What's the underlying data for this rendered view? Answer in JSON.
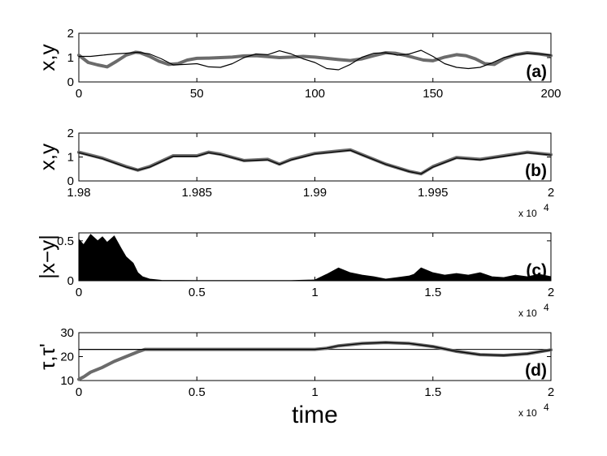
{
  "chart_data": [
    {
      "type": "line",
      "panel_label": "(a)",
      "ylabel": "x,y",
      "xlim": [
        0,
        200
      ],
      "ylim": [
        0,
        2
      ],
      "xticks": [
        "0",
        "50",
        "100",
        "150",
        "200"
      ],
      "yticks": [
        "0",
        "1",
        "2"
      ],
      "series": [
        {
          "style": "thick-gray",
          "color": "#6b6b6b",
          "x": [
            0,
            4,
            8,
            12,
            16,
            20,
            24,
            26,
            30,
            34,
            38,
            42,
            46,
            50,
            55,
            60,
            65,
            70,
            75,
            80,
            85,
            90,
            95,
            100,
            105,
            110,
            115,
            120,
            125,
            130,
            134,
            138,
            142,
            146,
            150,
            155,
            160,
            164,
            168,
            172,
            176,
            180,
            185,
            190,
            195,
            200
          ],
          "values": [
            1.1,
            0.8,
            0.7,
            0.62,
            0.85,
            1.1,
            1.22,
            1.2,
            1.05,
            0.85,
            0.72,
            0.75,
            0.9,
            0.97,
            0.98,
            1.0,
            1.02,
            1.07,
            1.08,
            1.04,
            1.0,
            1.02,
            1.05,
            1.02,
            0.97,
            0.92,
            0.88,
            0.95,
            1.08,
            1.2,
            1.18,
            1.1,
            1.0,
            0.9,
            0.87,
            1.02,
            1.12,
            1.08,
            0.95,
            0.75,
            0.72,
            0.95,
            1.12,
            1.2,
            1.15,
            1.08
          ]
        },
        {
          "style": "thin-black",
          "color": "#000000",
          "x": [
            0,
            5,
            10,
            15,
            20,
            25,
            30,
            35,
            40,
            45,
            50,
            55,
            60,
            65,
            70,
            75,
            80,
            85,
            90,
            95,
            100,
            105,
            110,
            115,
            120,
            125,
            130,
            135,
            140,
            145,
            150,
            155,
            160,
            165,
            170,
            175,
            180,
            185,
            190,
            195,
            200
          ],
          "values": [
            1.05,
            1.05,
            1.1,
            1.15,
            1.18,
            1.22,
            1.15,
            0.95,
            0.7,
            0.72,
            0.75,
            0.62,
            0.6,
            0.75,
            1.0,
            1.15,
            1.12,
            1.28,
            1.15,
            0.95,
            0.8,
            0.55,
            0.5,
            0.72,
            1.02,
            1.18,
            1.2,
            1.1,
            1.15,
            1.3,
            1.05,
            0.75,
            0.6,
            0.55,
            0.6,
            0.78,
            1.0,
            1.12,
            1.18,
            1.15,
            1.1
          ]
        }
      ]
    },
    {
      "type": "line",
      "panel_label": "(b)",
      "ylabel": "x,y",
      "xlim": [
        1.98,
        2.0
      ],
      "ylim": [
        0,
        2
      ],
      "xticks": [
        "1.98",
        "1.985",
        "1.99",
        "1.995",
        "2"
      ],
      "yticks": [
        "0",
        "1",
        "2"
      ],
      "x_multiplier": "x 10",
      "x_multiplier_exp": "4",
      "series": [
        {
          "style": "thick-gray",
          "color": "#6b6b6b",
          "x": [
            1.98,
            1.981,
            1.982,
            1.9825,
            1.983,
            1.984,
            1.985,
            1.9855,
            1.986,
            1.987,
            1.988,
            1.9885,
            1.989,
            1.99,
            1.991,
            1.9915,
            1.992,
            1.993,
            1.994,
            1.9945,
            1.995,
            1.996,
            1.997,
            1.998,
            1.999,
            2.0
          ],
          "values": [
            1.2,
            0.95,
            0.6,
            0.45,
            0.6,
            1.05,
            1.05,
            1.2,
            1.12,
            0.85,
            0.9,
            0.7,
            0.9,
            1.15,
            1.25,
            1.3,
            1.1,
            0.7,
            0.4,
            0.3,
            0.6,
            0.98,
            0.9,
            1.05,
            1.2,
            1.1
          ]
        },
        {
          "style": "thin-black",
          "color": "#000000",
          "x": [
            1.98,
            1.981,
            1.982,
            1.9825,
            1.983,
            1.984,
            1.985,
            1.9855,
            1.986,
            1.987,
            1.988,
            1.9885,
            1.989,
            1.99,
            1.991,
            1.9915,
            1.992,
            1.993,
            1.994,
            1.9945,
            1.995,
            1.996,
            1.997,
            1.998,
            1.999,
            2.0
          ],
          "values": [
            1.18,
            0.93,
            0.58,
            0.45,
            0.58,
            1.03,
            1.03,
            1.18,
            1.1,
            0.84,
            0.88,
            0.69,
            0.88,
            1.13,
            1.23,
            1.28,
            1.08,
            0.69,
            0.39,
            0.3,
            0.58,
            0.96,
            0.88,
            1.03,
            1.18,
            1.08
          ]
        }
      ]
    },
    {
      "type": "area",
      "panel_label": "(c)",
      "ylabel": "|x−y|",
      "xlim": [
        0,
        2
      ],
      "ylim": [
        0,
        0.6
      ],
      "xticks": [
        "0",
        "0.5",
        "1",
        "1.5",
        "2"
      ],
      "yticks": [
        "0",
        "0.5"
      ],
      "x_multiplier": "x 10",
      "x_multiplier_exp": "4",
      "series": [
        {
          "style": "black-fill",
          "color": "#000000",
          "x": [
            0,
            0.02,
            0.05,
            0.08,
            0.1,
            0.12,
            0.15,
            0.18,
            0.2,
            0.23,
            0.25,
            0.27,
            0.3,
            0.35,
            0.5,
            0.9,
            1.0,
            1.05,
            1.1,
            1.15,
            1.2,
            1.25,
            1.3,
            1.35,
            1.4,
            1.42,
            1.45,
            1.5,
            1.55,
            1.6,
            1.65,
            1.7,
            1.75,
            1.8,
            1.85,
            1.9,
            1.95,
            2.0
          ],
          "values": [
            0.52,
            0.45,
            0.58,
            0.5,
            0.55,
            0.48,
            0.56,
            0.4,
            0.3,
            0.22,
            0.1,
            0.05,
            0.02,
            0.005,
            0.002,
            0.002,
            0.01,
            0.08,
            0.16,
            0.1,
            0.07,
            0.05,
            0.02,
            0.04,
            0.06,
            0.08,
            0.16,
            0.1,
            0.07,
            0.09,
            0.07,
            0.1,
            0.05,
            0.04,
            0.07,
            0.05,
            0.08,
            0.05
          ]
        }
      ]
    },
    {
      "type": "line",
      "panel_label": "(d)",
      "ylabel": "τ,τ'",
      "xlabel": "time",
      "xlim": [
        0,
        2
      ],
      "ylim": [
        10,
        30
      ],
      "xticks": [
        "0",
        "0.5",
        "1",
        "1.5",
        "2"
      ],
      "yticks": [
        "10",
        "20",
        "30"
      ],
      "x_multiplier": "x 10",
      "x_multiplier_exp": "4",
      "reference_line": 23,
      "series": [
        {
          "style": "thick-gray",
          "color": "#6b6b6b",
          "x": [
            0,
            0.02,
            0.05,
            0.1,
            0.15,
            0.2,
            0.25,
            0.28,
            0.3,
            0.5,
            1.0,
            1.05,
            1.1,
            1.2,
            1.3,
            1.4,
            1.5,
            1.6,
            1.7,
            1.8,
            1.9,
            2.0
          ],
          "values": [
            10.5,
            11.5,
            13.5,
            15.5,
            18,
            20,
            22,
            23,
            23,
            23,
            23,
            23.5,
            24.5,
            25.5,
            25.9,
            25.5,
            24.2,
            22.2,
            20.8,
            20.5,
            21.2,
            22.8
          ]
        },
        {
          "style": "thin-black",
          "color": "#000000",
          "x": [
            0,
            0.3,
            0.5,
            1.0,
            1.05,
            1.1,
            1.2,
            1.3,
            1.4,
            1.5,
            1.6,
            1.7,
            1.8,
            1.9,
            2.0
          ],
          "values": [
            23,
            23,
            23,
            23,
            23.5,
            24.5,
            25.5,
            25.9,
            25.5,
            24.2,
            22.2,
            20.8,
            20.5,
            21.2,
            22.8
          ]
        }
      ]
    }
  ]
}
